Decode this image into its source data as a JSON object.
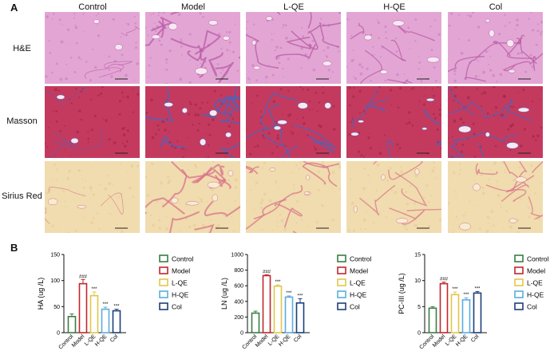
{
  "panels": {
    "a": "A",
    "b": "B"
  },
  "groups": [
    "Control",
    "Model",
    "L-QE",
    "H-QE",
    "Col"
  ],
  "stains": [
    "H&E",
    "Masson",
    "Sirius Red"
  ],
  "colors": {
    "Control": "#3a7d44",
    "Model": "#c0272d",
    "L-QE": "#e2c64a",
    "H-QE": "#5aaee0",
    "Col": "#1d3f7a",
    "he_bg": "#e3a6d4",
    "masson_bg": "#c43a5e",
    "masson_fiber": "#4f63b8",
    "sirius_bg": "#f0dcae",
    "sirius_fiber": "#d9728a"
  },
  "chart_data": [
    {
      "type": "bar",
      "ylabel": "HA  (ug /L)",
      "ylim": [
        0,
        150
      ],
      "yticks": [
        0,
        50,
        100,
        150
      ],
      "categories": [
        "Control",
        "Model",
        "L-QE",
        "H-QE",
        "Col"
      ],
      "values": [
        31,
        94,
        71,
        45,
        42
      ],
      "errors": [
        5,
        8,
        7,
        4,
        3
      ],
      "annotations": [
        "",
        "###",
        "***",
        "***",
        "***"
      ],
      "legend": [
        "Control",
        "Model",
        "L-QE",
        "H-QE",
        "Col"
      ]
    },
    {
      "type": "bar",
      "ylabel": "LN  (ug /L)",
      "ylim": [
        0,
        1000
      ],
      "yticks": [
        0,
        200,
        400,
        600,
        800,
        1000
      ],
      "categories": [
        "Control",
        "Model",
        "L-QE",
        "H-QE",
        "Col"
      ],
      "values": [
        250,
        730,
        595,
        455,
        380
      ],
      "errors": [
        25,
        10,
        15,
        15,
        55
      ],
      "annotations": [
        "",
        "###",
        "***",
        "***",
        "***"
      ],
      "legend": [
        "Control",
        "Model",
        "L-QE",
        "H-QE",
        "Col"
      ]
    },
    {
      "type": "bar",
      "ylabel": "PC-III  (ug /L)",
      "ylim": [
        0,
        15
      ],
      "yticks": [
        0,
        5,
        10,
        15
      ],
      "categories": [
        "Control",
        "Model",
        "L-QE",
        "H-QE",
        "Col"
      ],
      "values": [
        4.7,
        9.4,
        7.3,
        6.3,
        7.6
      ],
      "errors": [
        0.3,
        0.3,
        0.5,
        0.4,
        0.3
      ],
      "annotations": [
        "",
        "###",
        "***",
        "***",
        "***"
      ],
      "legend": [
        "Control",
        "Model",
        "L-QE",
        "H-QE",
        "Col"
      ]
    }
  ]
}
